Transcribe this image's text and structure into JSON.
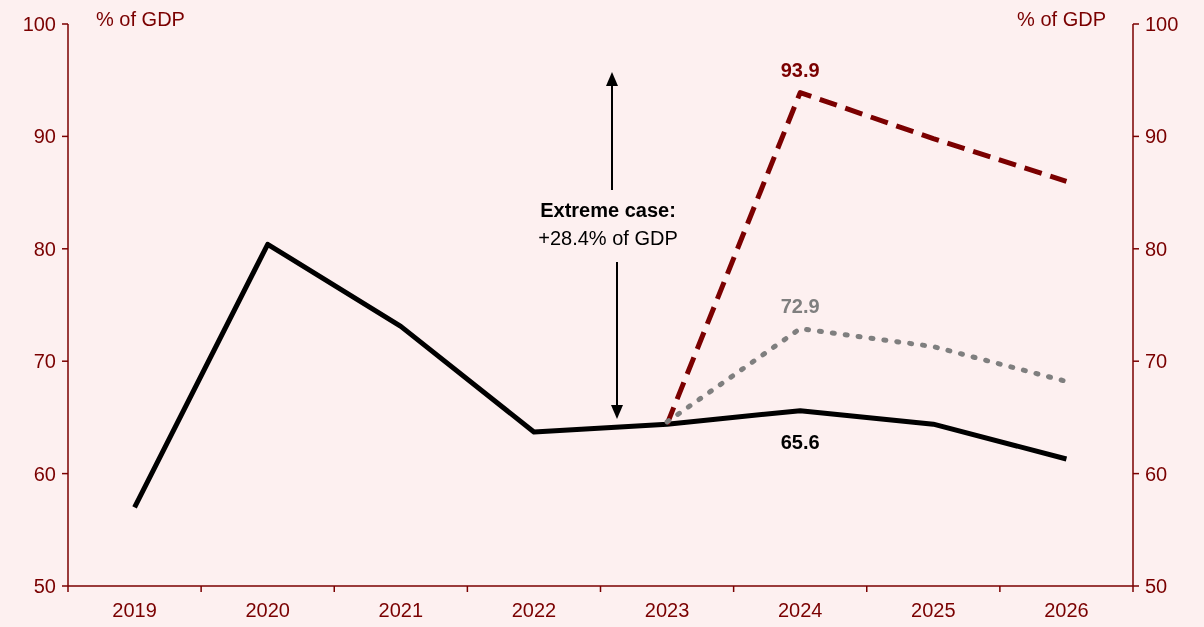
{
  "chart_data": {
    "type": "line",
    "ylabel": "% of GDP",
    "y2label": "% of GDP",
    "categories": [
      "2019",
      "2020",
      "2021",
      "2022",
      "2023",
      "2024",
      "2025",
      "2026"
    ],
    "series": [
      {
        "color": "#000000",
        "line_style": "solid",
        "values": [
          57.0,
          80.4,
          73.1,
          63.7,
          64.4,
          65.6,
          64.4,
          61.3
        ],
        "value_labels": [
          null,
          null,
          null,
          null,
          null,
          "65.6",
          null,
          null
        ]
      },
      {
        "color": "#7b0000",
        "line_style": "dashed",
        "values": [
          null,
          null,
          null,
          null,
          64.4,
          93.9,
          89.8,
          86.0
        ],
        "value_labels": [
          null,
          null,
          null,
          null,
          null,
          "93.9",
          null,
          null
        ]
      },
      {
        "color": "#7f7f7f",
        "line_style": "dotted",
        "values": [
          null,
          null,
          null,
          null,
          64.6,
          72.9,
          71.3,
          68.2
        ],
        "value_labels": [
          null,
          null,
          null,
          null,
          null,
          "72.9",
          null,
          null
        ]
      }
    ],
    "ylim": [
      50,
      100
    ],
    "yticks": [
      50,
      60,
      70,
      80,
      90,
      100
    ],
    "y2lim": [
      50,
      100
    ],
    "y2ticks": [
      50,
      60,
      70,
      80,
      90,
      100
    ],
    "marker": "none",
    "annotations": [
      "Extreme case:\n+28.4% of GDP"
    ]
  }
}
